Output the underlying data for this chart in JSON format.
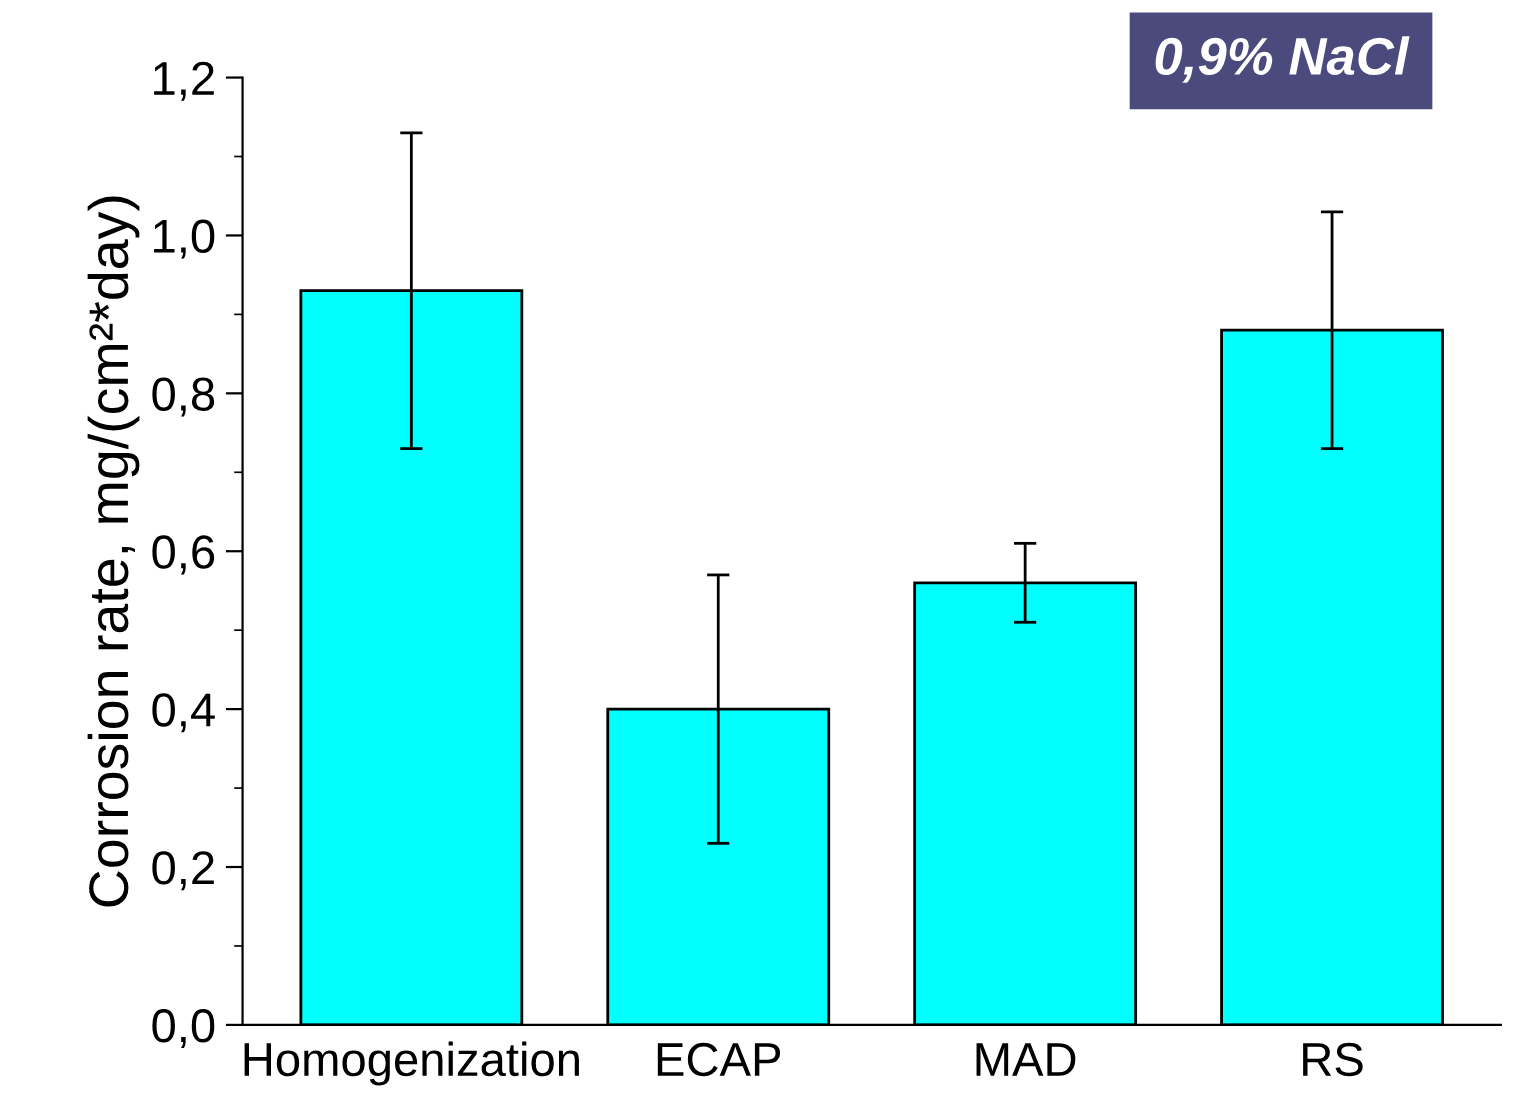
{
  "chart_data": {
    "type": "bar",
    "categories": [
      "Homogenization",
      "ECAP",
      "MAD",
      "RS"
    ],
    "values": [
      0.93,
      0.4,
      0.56,
      0.88
    ],
    "errors": [
      [
        0.73,
        1.13
      ],
      [
        0.23,
        0.57
      ],
      [
        0.51,
        0.61
      ],
      [
        0.73,
        1.03
      ]
    ],
    "color": "#00ffff",
    "ylabel": "Corrosion rate, mg/(cm²*day)",
    "ylim": [
      0,
      1.2
    ],
    "yticks": [
      {
        "value": 0,
        "label": "0,0"
      },
      {
        "value": 0.2,
        "label": "0,2"
      },
      {
        "value": 0.4,
        "label": "0,4"
      },
      {
        "value": 0.6,
        "label": "0,6"
      },
      {
        "value": 0.8,
        "label": "0,8"
      },
      {
        "value": 1.0,
        "label": "1,0"
      },
      {
        "value": 1.2,
        "label": "1,2"
      }
    ],
    "annotations": [
      "0,9% NaCl"
    ],
    "grid": false,
    "legend": false
  }
}
